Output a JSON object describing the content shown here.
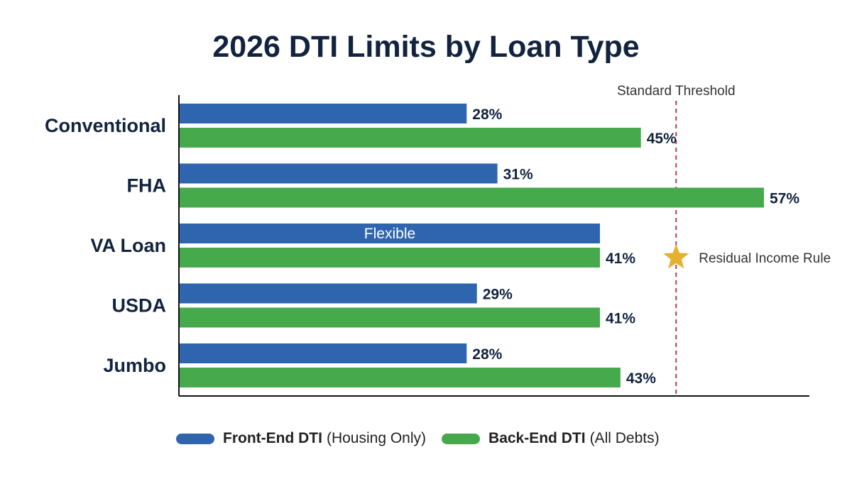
{
  "colors": {
    "front": "#2e65ae",
    "back": "#46a94c",
    "threshold": "#c0394b",
    "star": "#e6b030",
    "text": "#12233f"
  },
  "chart_data": {
    "type": "bar",
    "orientation": "horizontal",
    "title": "2026 DTI Limits by Loan Type",
    "categories": [
      "Conventional",
      "FHA",
      "VA Loan",
      "USDA",
      "Jumbo"
    ],
    "xlim": [
      0,
      57
    ],
    "grid": false,
    "legend_position": "bottom",
    "series": [
      {
        "name": "Front-End DTI",
        "qualifier": "(Housing Only)",
        "values": [
          28,
          31,
          41,
          29,
          28
        ],
        "labels": [
          "28%",
          "31%",
          "Flexible",
          "29%",
          "28%"
        ]
      },
      {
        "name": "Back-End DTI",
        "qualifier": "(All Debts)",
        "values": [
          45,
          57,
          41,
          41,
          43
        ],
        "labels": [
          "45%",
          "57%",
          "41%",
          "41%",
          "43%"
        ]
      }
    ],
    "threshold": {
      "value": 48.5,
      "label": "Standard Threshold"
    },
    "annotation": {
      "category": "VA Loan",
      "icon": "star-icon",
      "text": "Residual Income Rule"
    }
  }
}
